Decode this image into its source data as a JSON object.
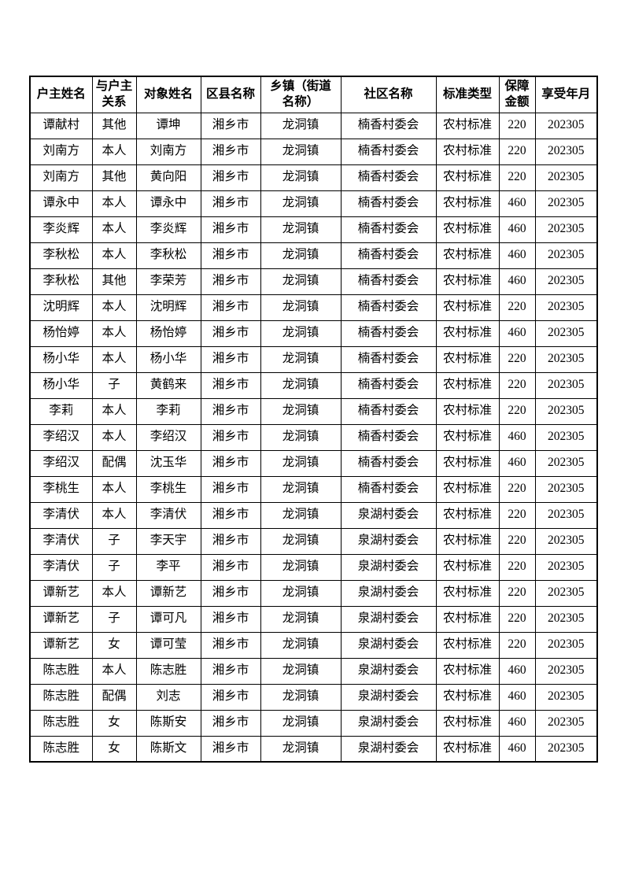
{
  "page": {
    "background_color": "#ffffff",
    "text_color": "#000000",
    "border_color": "#000000"
  },
  "table": {
    "columns": [
      {
        "label": "户主姓名"
      },
      {
        "label": "与户主\n关系"
      },
      {
        "label": "对象姓名"
      },
      {
        "label": "区县名称"
      },
      {
        "label": "乡镇（街道\n名称）"
      },
      {
        "label": "社区名称"
      },
      {
        "label": "标准类型"
      },
      {
        "label": "保障\n金额"
      },
      {
        "label": "享受年月"
      }
    ],
    "rows": [
      [
        "谭献村",
        "其他",
        "谭坤",
        "湘乡市",
        "龙洞镇",
        "楠香村委会",
        "农村标准",
        "220",
        "202305"
      ],
      [
        "刘南方",
        "本人",
        "刘南方",
        "湘乡市",
        "龙洞镇",
        "楠香村委会",
        "农村标准",
        "220",
        "202305"
      ],
      [
        "刘南方",
        "其他",
        "黄向阳",
        "湘乡市",
        "龙洞镇",
        "楠香村委会",
        "农村标准",
        "220",
        "202305"
      ],
      [
        "谭永中",
        "本人",
        "谭永中",
        "湘乡市",
        "龙洞镇",
        "楠香村委会",
        "农村标准",
        "460",
        "202305"
      ],
      [
        "李炎辉",
        "本人",
        "李炎辉",
        "湘乡市",
        "龙洞镇",
        "楠香村委会",
        "农村标准",
        "460",
        "202305"
      ],
      [
        "李秋松",
        "本人",
        "李秋松",
        "湘乡市",
        "龙洞镇",
        "楠香村委会",
        "农村标准",
        "460",
        "202305"
      ],
      [
        "李秋松",
        "其他",
        "李荣芳",
        "湘乡市",
        "龙洞镇",
        "楠香村委会",
        "农村标准",
        "460",
        "202305"
      ],
      [
        "沈明辉",
        "本人",
        "沈明辉",
        "湘乡市",
        "龙洞镇",
        "楠香村委会",
        "农村标准",
        "220",
        "202305"
      ],
      [
        "杨怡婷",
        "本人",
        "杨怡婷",
        "湘乡市",
        "龙洞镇",
        "楠香村委会",
        "农村标准",
        "460",
        "202305"
      ],
      [
        "杨小华",
        "本人",
        "杨小华",
        "湘乡市",
        "龙洞镇",
        "楠香村委会",
        "农村标准",
        "220",
        "202305"
      ],
      [
        "杨小华",
        "子",
        "黄鹤来",
        "湘乡市",
        "龙洞镇",
        "楠香村委会",
        "农村标准",
        "220",
        "202305"
      ],
      [
        "李莉",
        "本人",
        "李莉",
        "湘乡市",
        "龙洞镇",
        "楠香村委会",
        "农村标准",
        "220",
        "202305"
      ],
      [
        "李绍汉",
        "本人",
        "李绍汉",
        "湘乡市",
        "龙洞镇",
        "楠香村委会",
        "农村标准",
        "460",
        "202305"
      ],
      [
        "李绍汉",
        "配偶",
        "沈玉华",
        "湘乡市",
        "龙洞镇",
        "楠香村委会",
        "农村标准",
        "460",
        "202305"
      ],
      [
        "李桃生",
        "本人",
        "李桃生",
        "湘乡市",
        "龙洞镇",
        "楠香村委会",
        "农村标准",
        "220",
        "202305"
      ],
      [
        "李清伏",
        "本人",
        "李清伏",
        "湘乡市",
        "龙洞镇",
        "泉湖村委会",
        "农村标准",
        "220",
        "202305"
      ],
      [
        "李清伏",
        "子",
        "李天宇",
        "湘乡市",
        "龙洞镇",
        "泉湖村委会",
        "农村标准",
        "220",
        "202305"
      ],
      [
        "李清伏",
        "子",
        "李平",
        "湘乡市",
        "龙洞镇",
        "泉湖村委会",
        "农村标准",
        "220",
        "202305"
      ],
      [
        "谭新艺",
        "本人",
        "谭新艺",
        "湘乡市",
        "龙洞镇",
        "泉湖村委会",
        "农村标准",
        "220",
        "202305"
      ],
      [
        "谭新艺",
        "子",
        "谭可凡",
        "湘乡市",
        "龙洞镇",
        "泉湖村委会",
        "农村标准",
        "220",
        "202305"
      ],
      [
        "谭新艺",
        "女",
        "谭可莹",
        "湘乡市",
        "龙洞镇",
        "泉湖村委会",
        "农村标准",
        "220",
        "202305"
      ],
      [
        "陈志胜",
        "本人",
        "陈志胜",
        "湘乡市",
        "龙洞镇",
        "泉湖村委会",
        "农村标准",
        "460",
        "202305"
      ],
      [
        "陈志胜",
        "配偶",
        "刘志",
        "湘乡市",
        "龙洞镇",
        "泉湖村委会",
        "农村标准",
        "460",
        "202305"
      ],
      [
        "陈志胜",
        "女",
        "陈斯安",
        "湘乡市",
        "龙洞镇",
        "泉湖村委会",
        "农村标准",
        "460",
        "202305"
      ],
      [
        "陈志胜",
        "女",
        "陈斯文",
        "湘乡市",
        "龙洞镇",
        "泉湖村委会",
        "农村标准",
        "460",
        "202305"
      ]
    ]
  }
}
